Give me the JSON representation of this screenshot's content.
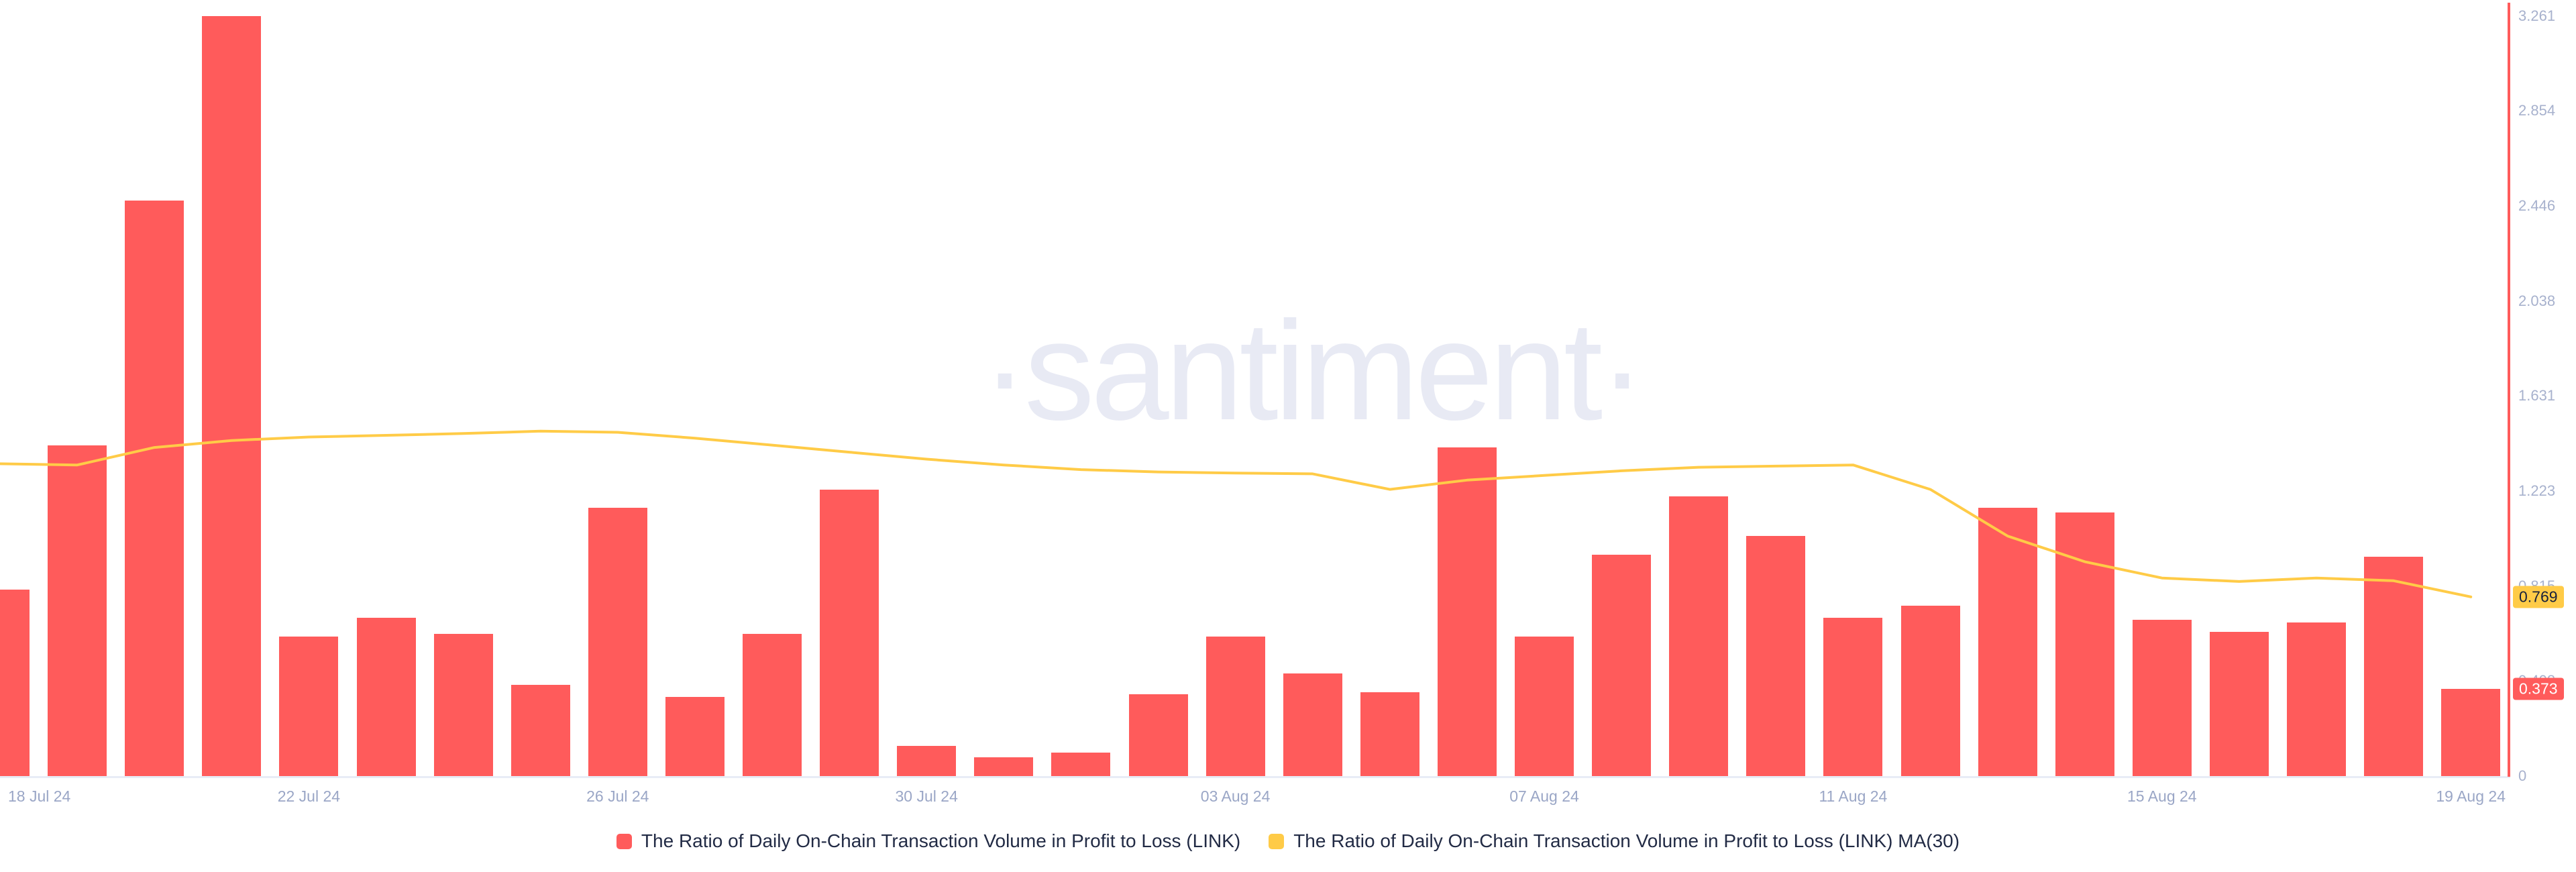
{
  "watermark": "·santiment·",
  "colors": {
    "bar": "#ff5b5b",
    "ma_line": "#ffcb47",
    "badge_ma_bg": "#ffcb47",
    "badge_bar_bg": "#ff5b5b",
    "axis_line": "#ff5b5b",
    "baseline": "#e8ecf6",
    "tick_text": "#a7b1cd",
    "date_text": "#9aa6c6",
    "legend_text": "#222b45",
    "watermark_text": "#e8eaf4"
  },
  "y_axis": {
    "ticks": [
      "3.261",
      "2.854",
      "2.446",
      "2.038",
      "1.631",
      "1.223",
      "0.815",
      "0.408",
      "0"
    ],
    "max": 3.261
  },
  "badges": {
    "ma_value": "0.769",
    "bar_value": "0.373"
  },
  "x_axis": {
    "tick_labels": [
      "18 Jul 24",
      "22 Jul 24",
      "26 Jul 24",
      "30 Jul 24",
      "03 Aug 24",
      "07 Aug 24",
      "11 Aug 24",
      "15 Aug 24",
      "19 Aug 24"
    ],
    "tick_indices": [
      0,
      4,
      8,
      12,
      16,
      20,
      24,
      28,
      32
    ]
  },
  "legend": {
    "items": [
      {
        "label": "The Ratio of Daily On-Chain Transaction Volume in Profit to Loss (LINK)",
        "color": "#ff5b5b"
      },
      {
        "label": "The Ratio of Daily On-Chain Transaction Volume in Profit to Loss (LINK) MA(30)",
        "color": "#ffcb47"
      }
    ]
  },
  "chart_data": {
    "type": "bar",
    "title": "",
    "categories": [
      "18 Jul 24",
      "19 Jul 24",
      "20 Jul 24",
      "21 Jul 24",
      "22 Jul 24",
      "23 Jul 24",
      "24 Jul 24",
      "25 Jul 24",
      "26 Jul 24",
      "27 Jul 24",
      "28 Jul 24",
      "29 Jul 24",
      "30 Jul 24",
      "31 Jul 24",
      "01 Aug 24",
      "02 Aug 24",
      "03 Aug 24",
      "04 Aug 24",
      "05 Aug 24",
      "06 Aug 24",
      "07 Aug 24",
      "08 Aug 24",
      "09 Aug 24",
      "10 Aug 24",
      "11 Aug 24",
      "12 Aug 24",
      "13 Aug 24",
      "14 Aug 24",
      "15 Aug 24",
      "16 Aug 24",
      "17 Aug 24",
      "18 Aug 24",
      "19 Aug 24"
    ],
    "series": [
      {
        "name": "The Ratio of Daily On-Chain Transaction Volume in Profit to Loss (LINK)",
        "type": "bar",
        "color": "#ff5b5b",
        "values": [
          0.8,
          1.42,
          2.47,
          3.261,
          0.6,
          0.68,
          0.61,
          0.39,
          1.15,
          0.34,
          0.61,
          1.23,
          0.13,
          0.08,
          0.1,
          0.35,
          0.6,
          0.44,
          0.36,
          1.41,
          0.6,
          0.95,
          1.2,
          1.03,
          0.68,
          0.73,
          1.15,
          1.13,
          0.67,
          0.62,
          0.66,
          0.94,
          0.373
        ]
      },
      {
        "name": "The Ratio of Daily On-Chain Transaction Volume in Profit to Loss (LINK) MA(30)",
        "type": "line",
        "color": "#ffcb47",
        "values": [
          1.34,
          1.335,
          1.41,
          1.44,
          1.455,
          1.462,
          1.47,
          1.48,
          1.475,
          1.45,
          1.42,
          1.39,
          1.36,
          1.335,
          1.315,
          1.305,
          1.3,
          1.297,
          1.23,
          1.27,
          1.29,
          1.31,
          1.325,
          1.33,
          1.335,
          1.23,
          1.03,
          0.92,
          0.85,
          0.835,
          0.85,
          0.838,
          0.769
        ]
      }
    ],
    "ylim": [
      0,
      3.261
    ],
    "y_ticks": [
      0,
      0.408,
      0.815,
      1.223,
      1.631,
      2.038,
      2.446,
      2.854,
      3.261
    ],
    "last_values": {
      "bar": 0.373,
      "ma": 0.769
    },
    "grid": false,
    "legend_position": "bottom"
  }
}
